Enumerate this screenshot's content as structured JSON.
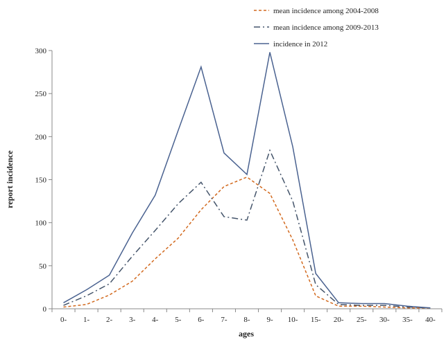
{
  "chart_data": {
    "type": "line",
    "title": "",
    "xlabel": "ages",
    "ylabel": "report incidence",
    "categories": [
      "0-",
      "1-",
      "2-",
      "3-",
      "4-",
      "5-",
      "6-",
      "7-",
      "8-",
      "9-",
      "10-",
      "15-",
      "20-",
      "25-",
      "30-",
      "35-",
      "40-"
    ],
    "ylim": [
      0,
      300
    ],
    "yticks": [
      0,
      50,
      100,
      150,
      200,
      250,
      300
    ],
    "grid": false,
    "legend_position": "top-right",
    "series": [
      {
        "name": "mean incidence among 2004-2008",
        "color": "#d2691e",
        "dash": "dashed",
        "values": [
          2,
          5,
          16,
          32,
          58,
          82,
          115,
          142,
          153,
          134,
          80,
          15,
          3,
          3,
          2,
          1,
          1
        ]
      },
      {
        "name": "mean incidence among 2009-2013",
        "color": "#44546a",
        "dash": "dash-dot",
        "values": [
          4,
          15,
          29,
          61,
          91,
          122,
          147,
          107,
          103,
          184,
          125,
          28,
          5,
          4,
          4,
          2,
          1
        ]
      },
      {
        "name": "incidence in 2012",
        "color": "#4a6290",
        "dash": "solid",
        "values": [
          7,
          22,
          39,
          88,
          132,
          207,
          281,
          181,
          156,
          298,
          188,
          41,
          7,
          6,
          6,
          3,
          1
        ]
      }
    ]
  }
}
